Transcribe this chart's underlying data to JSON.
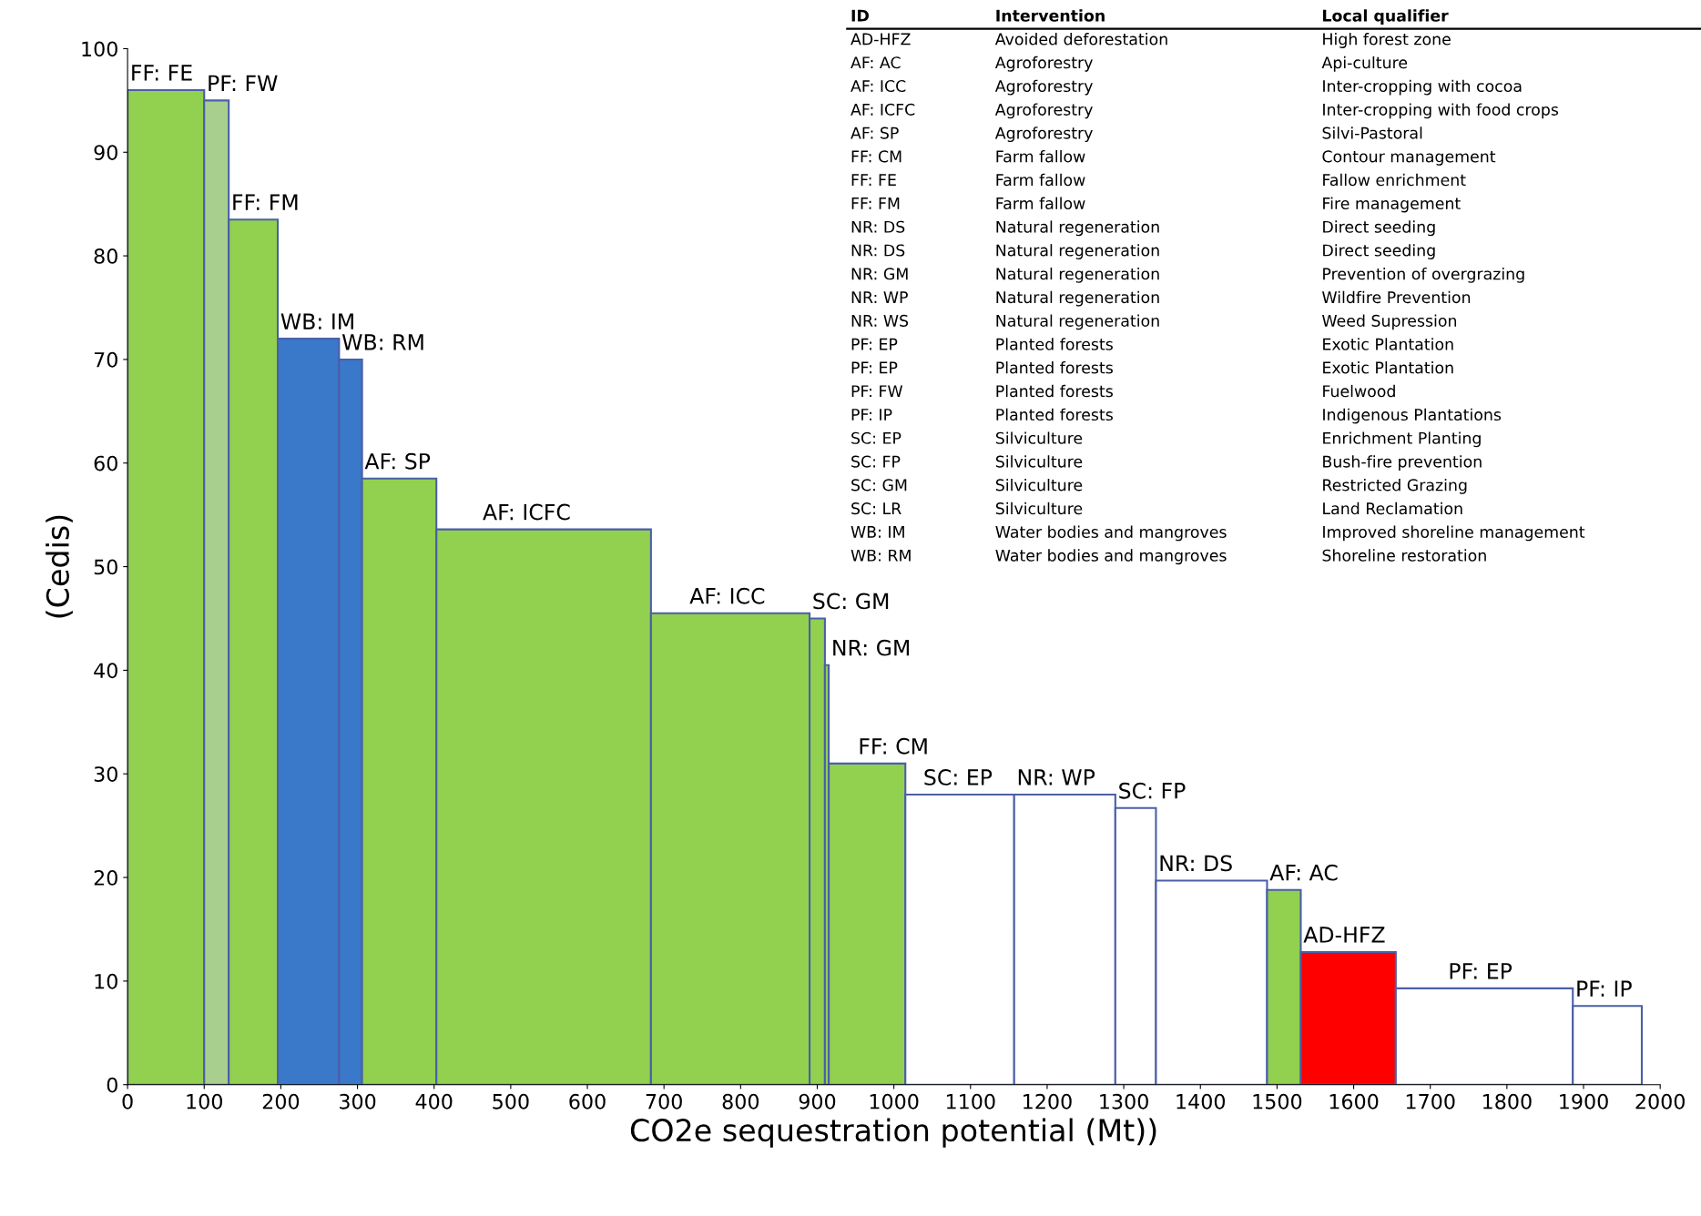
{
  "chart_data": {
    "type": "histogram",
    "xlabel": "CO2e sequestration potential (Mt))",
    "ylabel": "(Cedis)",
    "bins": [
      0,
      100,
      132,
      196,
      276,
      306,
      403,
      683,
      890,
      910,
      915,
      1015,
      1157,
      1289,
      1342,
      1487,
      1531,
      1655,
      1886,
      1976
    ],
    "values": [
      96,
      95,
      83.5,
      72,
      70,
      58.5,
      53.6,
      45.5,
      45,
      40.5,
      31,
      28,
      28,
      26.7,
      19.7,
      18.8,
      12.8,
      9.3,
      7.6
    ],
    "colors": [
      "#92d050",
      "#a9cf8e",
      "#92d050",
      "#3a78c9",
      "#3a78c9",
      "#92d050",
      "#92d050",
      "#92d050",
      "#92d050",
      "#92d050",
      "#92d050",
      "#ffffff",
      "#ffffff",
      "#ffffff",
      "#ffffff",
      "#92d050",
      "#ff0000",
      "#ffffff",
      "#ffffff"
    ],
    "xlim": [
      0,
      2000
    ],
    "xticks": [
      0,
      100,
      200,
      300,
      400,
      500,
      600,
      700,
      800,
      900,
      1000,
      1100,
      1200,
      1300,
      1400,
      1500,
      1600,
      1700,
      1800,
      1900,
      2000
    ],
    "ylim": [
      0,
      100
    ],
    "yticks": [
      0,
      10,
      20,
      30,
      40,
      50,
      60,
      70,
      80,
      90,
      100
    ],
    "grid": false,
    "legend": false,
    "annotations": [
      {
        "text": "FF: FE",
        "x": 0,
        "y": 96
      },
      {
        "text": "PF: FW",
        "x": 100,
        "y": 95
      },
      {
        "text": "FF: FM",
        "x": 132,
        "y": 83.5
      },
      {
        "text": "WB: IM",
        "x": 196,
        "y": 72
      },
      {
        "text": "WB: RM",
        "x": 276,
        "y": 70
      },
      {
        "text": "AF: SP",
        "x": 306,
        "y": 58.5
      },
      {
        "text": "AF: ICFC",
        "x": 460,
        "y": 53.6
      },
      {
        "text": "AF: ICC",
        "x": 730,
        "y": 45.5
      },
      {
        "text": "SC: GM",
        "x": 890,
        "y": 45
      },
      {
        "text": "NR: GM",
        "x": 915,
        "y": 40.5
      },
      {
        "text": "FF: CM",
        "x": 950,
        "y": 31
      },
      {
        "text": "SC: EP",
        "x": 1035,
        "y": 28
      },
      {
        "text": "NR: WP",
        "x": 1157,
        "y": 28
      },
      {
        "text": "SC: FP",
        "x": 1289,
        "y": 26.7
      },
      {
        "text": "NR: DS",
        "x": 1342,
        "y": 19.7
      },
      {
        "text": "AF: AC",
        "x": 1487,
        "y": 18.8
      },
      {
        "text": "AD-HFZ",
        "x": 1531,
        "y": 12.8
      },
      {
        "text": "PF: EP",
        "x": 1720,
        "y": 9.3
      },
      {
        "text": "PF: IP",
        "x": 1886,
        "y": 7.6
      },
      "ID",
      "Intervention",
      "Local qualifier",
      "AD-HFZ",
      "Avoided deforestation",
      "High forest zone",
      "AF: AC",
      "Agroforestry",
      "Api-culture",
      "AF: ICC",
      "Agroforestry",
      "Inter-cropping with cocoa",
      "AF: ICFC",
      "Agroforestry",
      "Inter-cropping with food crops",
      "AF: SP",
      "Agroforestry",
      "Silvi-Pastoral",
      "FF: CM",
      "Farm fallow",
      "Contour management",
      "FF: FE",
      "Farm fallow",
      "Fallow enrichment",
      "FF: FM",
      "Farm fallow",
      "Fire management",
      "NR: DS",
      "Natural regeneration",
      "Direct seeding",
      "NR: DS",
      "Natural regeneration",
      "Direct seeding",
      "NR: GM",
      "Natural regeneration",
      "Prevention of overgrazing",
      "NR: WP",
      "Natural regeneration",
      "Wildfire Prevention",
      "NR: WS",
      "Natural regeneration",
      "Weed Supression",
      "PF: EP",
      "Planted forests",
      "Exotic Plantation",
      "PF: EP",
      "Planted forests",
      "Exotic Plantation",
      "PF: FW",
      "Planted forests",
      "Fuelwood",
      "PF: IP",
      "Planted forests",
      "Indigenous Plantations",
      "SC: EP",
      "Silviculture",
      "Enrichment Planting",
      "SC: FP",
      "Silviculture",
      "Bush-fire prevention",
      "SC: GM",
      "Silviculture",
      "Restricted Grazing",
      "SC: LR",
      "Silviculture",
      "Land Reclamation",
      "WB: IM",
      "Water bodies and mangroves",
      "Improved shoreline management",
      "WB: RM",
      "Water bodies and mangroves",
      "Shoreline restoration"
    ]
  }
}
